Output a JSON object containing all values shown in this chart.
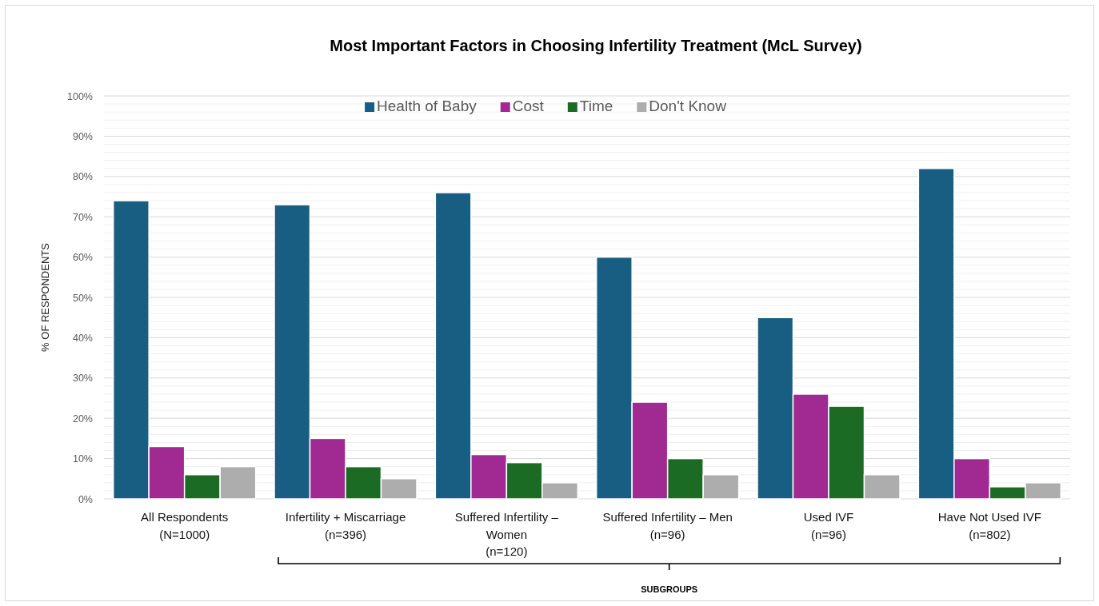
{
  "chart_data": {
    "type": "bar",
    "title": "Most Important Factors in Choosing Infertility Treatment (McL Survey)",
    "ylabel": "% OF RESPONDENTS",
    "annotations": [
      "SUBGROUPS"
    ],
    "categories": [
      "All Respondents\n(N=1000)",
      "Infertility + Miscarriage\n(n=396)",
      "Suffered Infertility –\nWomen\n(n=120)",
      "Suffered Infertility – Men\n(n=96)",
      "Used IVF\n(n=96)",
      "Have Not Used IVF\n(n=802)"
    ],
    "series": [
      {
        "name": "Health of Baby",
        "color": "#175e82",
        "values": [
          74,
          73,
          76,
          60,
          45,
          82
        ]
      },
      {
        "name": "Cost",
        "color": "#a02a92",
        "values": [
          13,
          15,
          11,
          24,
          26,
          10
        ]
      },
      {
        "name": "Time",
        "color": "#1b6b25",
        "values": [
          6,
          8,
          9,
          10,
          23,
          3
        ]
      },
      {
        "name": "Don't Know",
        "color": "#adadad",
        "values": [
          8,
          5,
          4,
          6,
          6,
          4
        ]
      }
    ],
    "ylim": [
      0,
      100
    ],
    "yticks": [
      {
        "value": 0,
        "label": "0%"
      },
      {
        "value": 2,
        "label": null
      },
      {
        "value": 4,
        "label": null
      },
      {
        "value": 6,
        "label": null
      },
      {
        "value": 8,
        "label": null
      },
      {
        "value": 10,
        "label": "10%"
      },
      {
        "value": 12,
        "label": null
      },
      {
        "value": 14,
        "label": null
      },
      {
        "value": 16,
        "label": null
      },
      {
        "value": 18,
        "label": null
      },
      {
        "value": 20,
        "label": "20%"
      },
      {
        "value": 22,
        "label": null
      },
      {
        "value": 24,
        "label": null
      },
      {
        "value": 26,
        "label": null
      },
      {
        "value": 28,
        "label": null
      },
      {
        "value": 30,
        "label": "30%"
      },
      {
        "value": 32,
        "label": null
      },
      {
        "value": 34,
        "label": null
      },
      {
        "value": 36,
        "label": null
      },
      {
        "value": 38,
        "label": null
      },
      {
        "value": 40,
        "label": "40%"
      },
      {
        "value": 42,
        "label": null
      },
      {
        "value": 44,
        "label": null
      },
      {
        "value": 46,
        "label": null
      },
      {
        "value": 48,
        "label": null
      },
      {
        "value": 50,
        "label": "50%"
      },
      {
        "value": 52,
        "label": null
      },
      {
        "value": 54,
        "label": null
      },
      {
        "value": 56,
        "label": null
      },
      {
        "value": 58,
        "label": null
      },
      {
        "value": 60,
        "label": "60%"
      },
      {
        "value": 62,
        "label": null
      },
      {
        "value": 64,
        "label": null
      },
      {
        "value": 66,
        "label": null
      },
      {
        "value": 68,
        "label": null
      },
      {
        "value": 70,
        "label": "70%"
      },
      {
        "value": 72,
        "label": null
      },
      {
        "value": 74,
        "label": null
      },
      {
        "value": 76,
        "label": null
      },
      {
        "value": 78,
        "label": null
      },
      {
        "value": 80,
        "label": "80%"
      },
      {
        "value": 82,
        "label": null
      },
      {
        "value": 84,
        "label": null
      },
      {
        "value": 86,
        "label": null
      },
      {
        "value": 88,
        "label": null
      },
      {
        "value": 90,
        "label": "90%"
      },
      {
        "value": 92,
        "label": null
      },
      {
        "value": 94,
        "label": null
      },
      {
        "value": 96,
        "label": null
      },
      {
        "value": 98,
        "label": null
      },
      {
        "value": 100,
        "label": "100%"
      }
    ],
    "grid": "y",
    "legend": "top"
  }
}
